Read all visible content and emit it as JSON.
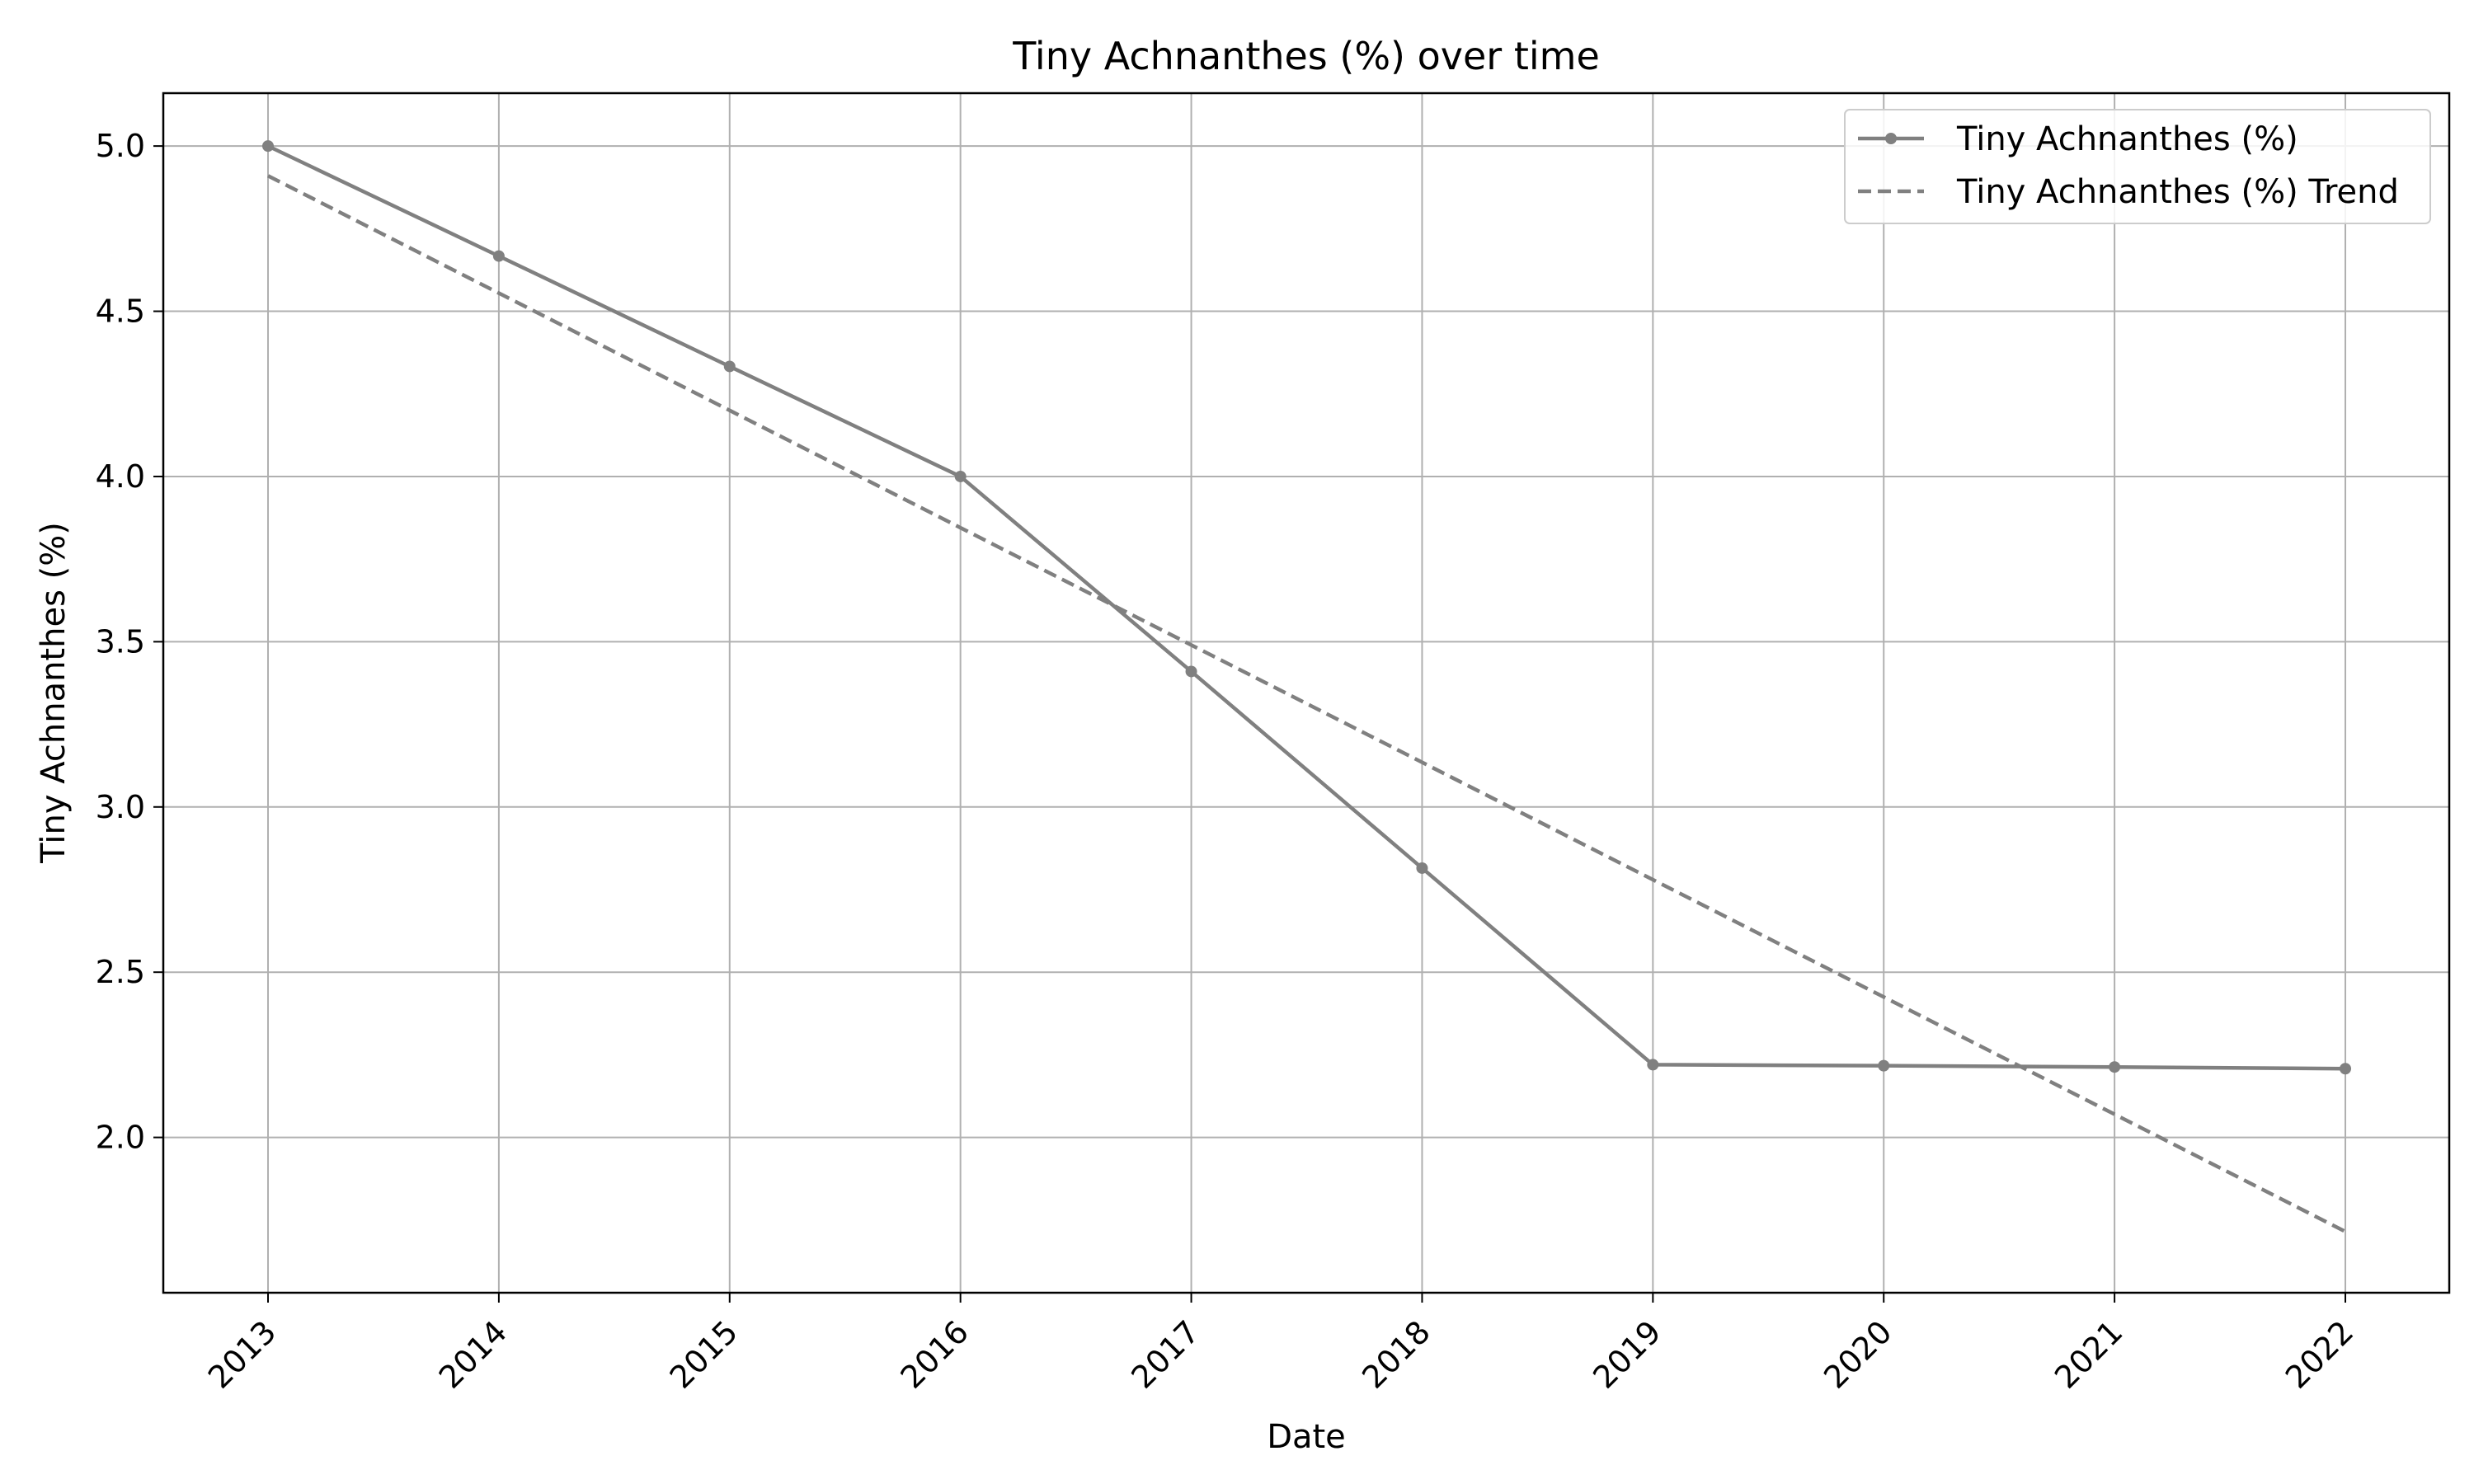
{
  "chart_data": {
    "type": "line",
    "title": "Tiny Achnanthes (%) over time",
    "xlabel": "Date",
    "ylabel": "Tiny Achnanthes (%)",
    "categories": [
      "2013",
      "2014",
      "2015",
      "2016",
      "2017",
      "2018",
      "2019",
      "2020",
      "2021",
      "2022"
    ],
    "y_ticks": [
      "2.0",
      "2.5",
      "3.0",
      "3.5",
      "4.0",
      "4.5",
      "5.0"
    ],
    "ylim": [
      1.53,
      5.16
    ],
    "grid": true,
    "legend_position": "top-right",
    "series": [
      {
        "name": "Tiny Achnanthes (%)",
        "style": "solid-with-markers",
        "color": "#808080",
        "values": [
          5.0,
          4.667,
          4.333,
          4.0,
          3.41,
          2.815,
          2.22,
          2.217,
          2.213,
          2.208
        ]
      },
      {
        "name": "Tiny Achnanthes (%) Trend",
        "style": "dashed",
        "color": "#808080",
        "values": [
          4.91,
          4.555,
          4.2,
          3.845,
          3.49,
          3.135,
          2.78,
          2.425,
          2.07,
          1.715
        ]
      }
    ]
  }
}
